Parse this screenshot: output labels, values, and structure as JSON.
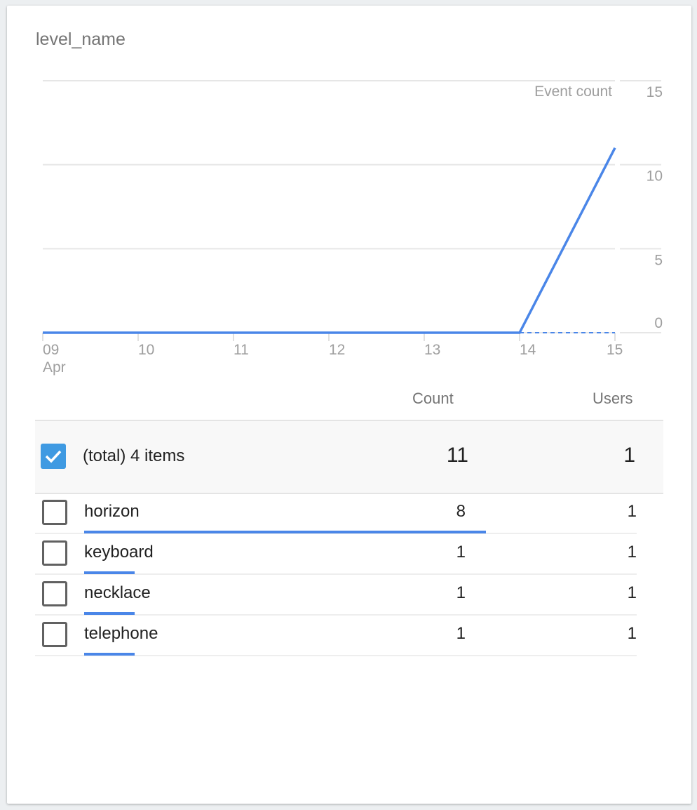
{
  "card": {
    "title": "level_name"
  },
  "chart_data": {
    "type": "line",
    "title": "",
    "ylabel": "Event count",
    "x": [
      "09",
      "10",
      "11",
      "12",
      "13",
      "14",
      "15"
    ],
    "x_sublabel": "Apr",
    "series": [
      {
        "values": [
          0,
          0,
          0,
          0,
          0,
          0,
          11
        ],
        "color": "#4a86e8"
      }
    ],
    "comparison_series_dashed": [
      0,
      0,
      0,
      0,
      0,
      0,
      0
    ],
    "ylim": [
      0,
      15
    ],
    "yticks": [
      "0",
      "5",
      "10",
      "15"
    ],
    "grid": true
  },
  "table": {
    "columns": [
      "Count",
      "Users"
    ],
    "total": {
      "label": "(total) 4 items",
      "count": "11",
      "users": "1",
      "checked": true
    },
    "rows": [
      {
        "label": "horizon",
        "count": "8",
        "users": "1",
        "share": 8
      },
      {
        "label": "keyboard",
        "count": "1",
        "users": "1",
        "share": 1
      },
      {
        "label": "necklace",
        "count": "1",
        "users": "1",
        "share": 1
      },
      {
        "label": "telephone",
        "count": "1",
        "users": "1",
        "share": 1
      }
    ]
  }
}
